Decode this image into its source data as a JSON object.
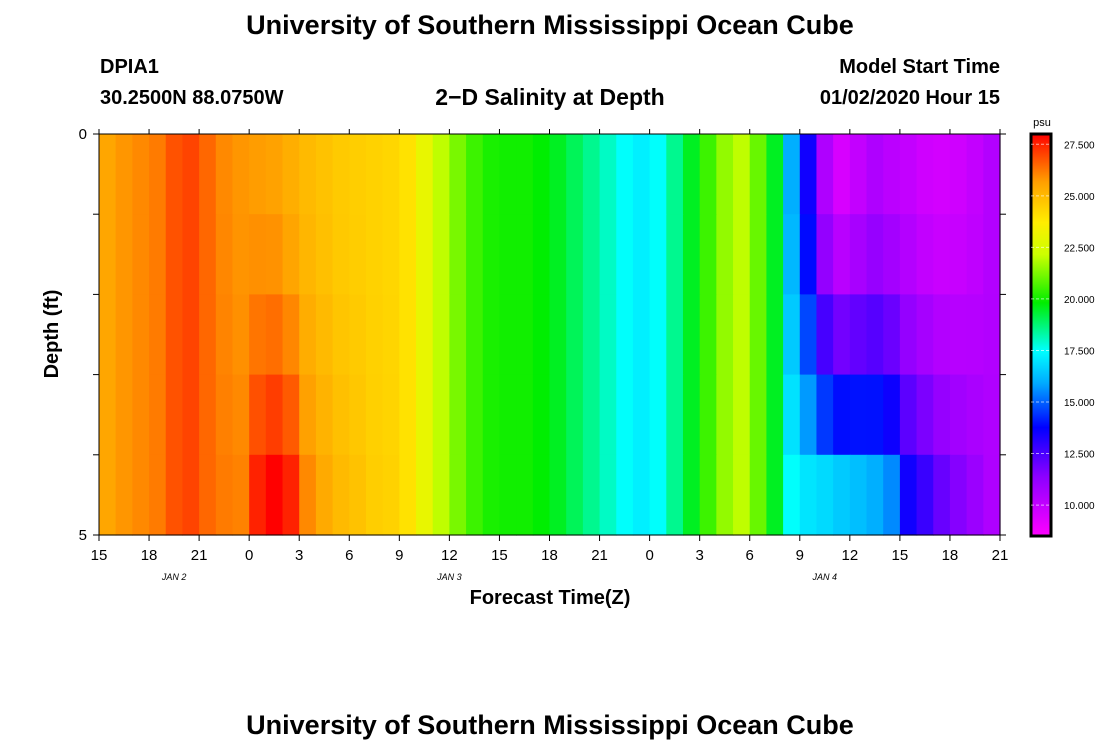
{
  "header": {
    "title_top": "University of Southern Mississippi Ocean Cube",
    "title_bottom": "University of Southern Mississippi Ocean Cube",
    "station_id": "DPIA1",
    "station_coords": "30.2500N 88.0750W",
    "plot_title": "2−D Salinity at Depth",
    "model_start_label": "Model Start Time",
    "model_start_value": "01/02/2020 Hour 15"
  },
  "chart_data": {
    "type": "heatmap",
    "title": "2−D Salinity at Depth",
    "xlabel": "Forecast Time(Z)",
    "ylabel": "Depth (ft)",
    "x_tick_labels": [
      "15",
      "18",
      "21",
      "0",
      "3",
      "6",
      "9",
      "12",
      "15",
      "18",
      "21",
      "0",
      "3",
      "6",
      "9",
      "12",
      "15",
      "18",
      "21"
    ],
    "date_labels": [
      {
        "label": "JAN  2",
        "hour_index": 4.5
      },
      {
        "label": "JAN  3",
        "hour_index": 21
      },
      {
        "label": "JAN  4",
        "hour_index": 43.5
      }
    ],
    "y_tick_labels": [
      "0",
      "5"
    ],
    "y_range": [
      0,
      5
    ],
    "hour_range": [
      0,
      54
    ],
    "depth_levels": 5,
    "colorbar": {
      "unit": "psu",
      "range": [
        8.5,
        28
      ],
      "tick_labels": [
        "27.500",
        "25.000",
        "22.500",
        "20.000",
        "17.500",
        "15.000",
        "12.500",
        "10.000"
      ],
      "tick_values": [
        27.5,
        25,
        22.5,
        20,
        17.5,
        15,
        12.5,
        10
      ]
    },
    "time_steps_hours": [
      0,
      1,
      2,
      3,
      4,
      5,
      6,
      7,
      8,
      9,
      10,
      11,
      12,
      13,
      14,
      15,
      16,
      17,
      18,
      19,
      20,
      21,
      22,
      23,
      24,
      25,
      26,
      27,
      28,
      29,
      30,
      31,
      32,
      33,
      34,
      35,
      36,
      37,
      38,
      39,
      40,
      41,
      42,
      43,
      44,
      45,
      46,
      47,
      48,
      49,
      50,
      51,
      52,
      53
    ],
    "salinity_surface_psu": [
      25.5,
      25.8,
      26.0,
      26.2,
      26.8,
      27.0,
      26.5,
      26.0,
      25.8,
      25.7,
      25.6,
      25.3,
      25.0,
      24.8,
      24.6,
      24.5,
      24.4,
      24.3,
      24.0,
      23.0,
      22.0,
      21.2,
      20.5,
      20.1,
      20.0,
      20.0,
      19.8,
      19.5,
      19.0,
      18.5,
      18.0,
      17.5,
      17.2,
      17.5,
      18.5,
      19.5,
      20.5,
      21.5,
      22.0,
      21.0,
      19.5,
      16.0,
      13.5,
      10.5,
      9.5,
      10.0,
      10.5,
      10.2,
      10.0,
      9.7,
      9.6,
      9.7,
      10.0,
      10.4
    ],
    "salinity_bottom_psu": [
      25.5,
      25.8,
      26.0,
      26.2,
      26.8,
      27.0,
      26.5,
      26.2,
      26.1,
      27.5,
      28.0,
      27.5,
      26.0,
      25.4,
      25.0,
      24.8,
      24.5,
      24.4,
      24.0,
      23.0,
      22.0,
      21.2,
      20.5,
      20.1,
      20.0,
      20.0,
      19.8,
      19.5,
      19.0,
      18.5,
      18.0,
      17.5,
      17.2,
      17.5,
      18.5,
      19.5,
      20.5,
      21.5,
      22.0,
      21.0,
      19.5,
      17.5,
      17.0,
      16.8,
      16.5,
      16.3,
      16.0,
      15.5,
      13.5,
      12.8,
      12.0,
      11.5,
      11.0,
      10.5
    ],
    "notes": "salinity for intermediate depths varies between surface and bottom profiles"
  }
}
